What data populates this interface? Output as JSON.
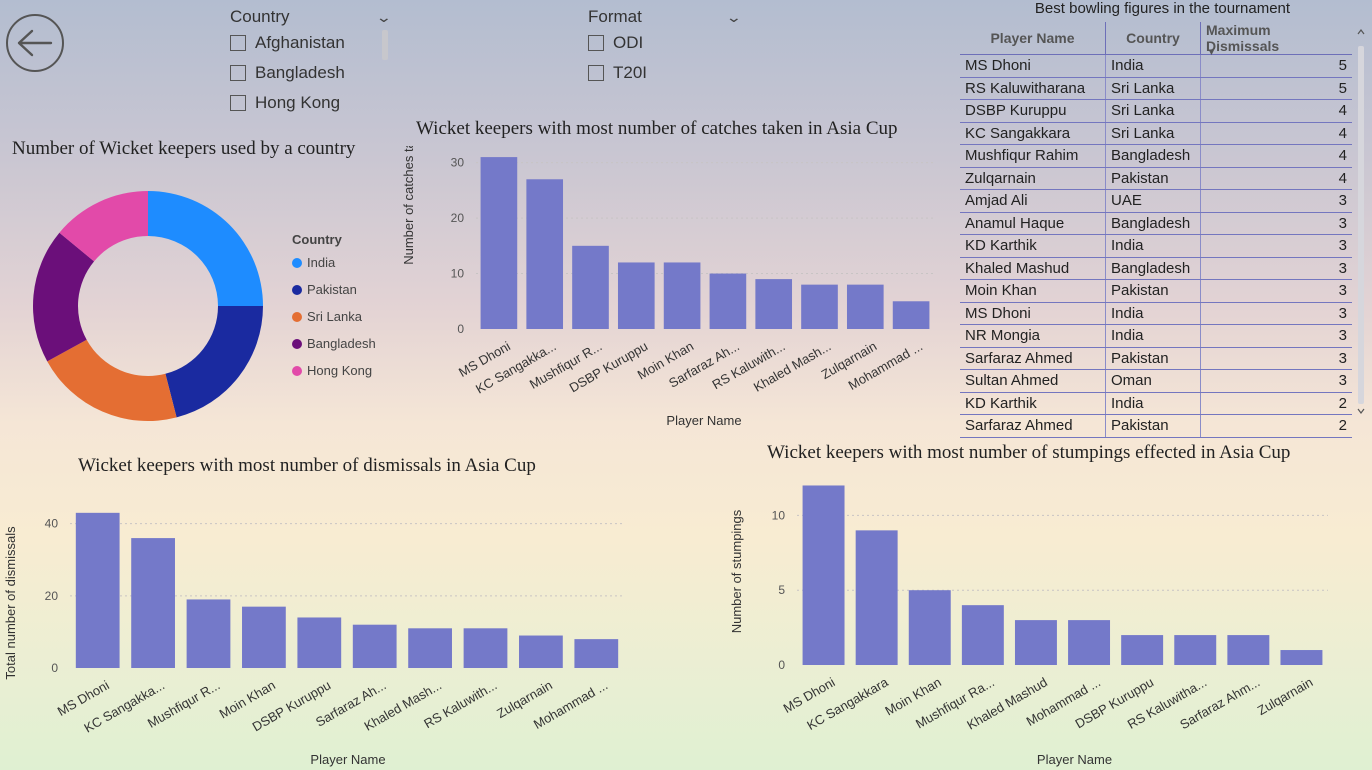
{
  "colors": {
    "bar": "#7479c9",
    "india": "#1e8cff",
    "pakistan": "#1a2aa0",
    "sri_lanka": "#e46e33",
    "bangladesh": "#6b0f7a",
    "hong_kong": "#e24aa9"
  },
  "back_icon": "back-arrow-icon",
  "country_slicer": {
    "title": "Country",
    "options": [
      "Afghanistan",
      "Bangladesh",
      "Hong Kong"
    ]
  },
  "format_slicer": {
    "title": "Format",
    "options": [
      "ODI",
      "T20I"
    ]
  },
  "table": {
    "title": "Best bowling figures in the tournament",
    "columns": [
      "Player Name",
      "Country",
      "Maximum Dismissals"
    ],
    "rows": [
      [
        "MS Dhoni",
        "India",
        "5"
      ],
      [
        "RS Kaluwitharana",
        "Sri Lanka",
        "5"
      ],
      [
        "DSBP Kuruppu",
        "Sri Lanka",
        "4"
      ],
      [
        "KC Sangakkara",
        "Sri Lanka",
        "4"
      ],
      [
        "Mushfiqur Rahim",
        "Bangladesh",
        "4"
      ],
      [
        "Zulqarnain",
        "Pakistan",
        "4"
      ],
      [
        "Amjad Ali",
        "UAE",
        "3"
      ],
      [
        "Anamul Haque",
        "Bangladesh",
        "3"
      ],
      [
        "KD Karthik",
        "India",
        "3"
      ],
      [
        "Khaled Mashud",
        "Bangladesh",
        "3"
      ],
      [
        "Moin Khan",
        "Pakistan",
        "3"
      ],
      [
        "MS Dhoni",
        "India",
        "3"
      ],
      [
        "NR Mongia",
        "India",
        "3"
      ],
      [
        "Sarfaraz Ahmed",
        "Pakistan",
        "3"
      ],
      [
        "Sultan Ahmed",
        "Oman",
        "3"
      ],
      [
        "KD Karthik",
        "India",
        "2"
      ],
      [
        "Sarfaraz Ahmed",
        "Pakistan",
        "2"
      ]
    ]
  },
  "chart_data": [
    {
      "id": "donut",
      "type": "pie",
      "title": "Number of Wicket keepers used by a country",
      "legend_title": "Country",
      "legend_position": "right",
      "labels": [
        "India",
        "Pakistan",
        "Sri Lanka",
        "Bangladesh",
        "Hong Kong"
      ],
      "values": [
        25,
        21,
        21,
        19,
        14
      ]
    },
    {
      "id": "catches",
      "type": "bar",
      "title": "Wicket keepers with most number of catches taken in Asia Cup",
      "xlabel": "Player Name",
      "ylabel": "Number of catches taken",
      "ylim": [
        0,
        33
      ],
      "yticks": [
        0,
        10,
        20,
        30
      ],
      "categories": [
        "MS Dhoni",
        "KC Sangakka...",
        "Mushfiqur R...",
        "DSBP Kuruppu",
        "Moin Khan",
        "Sarfaraz Ah...",
        "RS Kaluwith...",
        "Khaled Mash...",
        "Zulqarnain",
        "Mohammad ..."
      ],
      "values": [
        31,
        27,
        15,
        12,
        12,
        10,
        9,
        8,
        8,
        5
      ]
    },
    {
      "id": "dismissals",
      "type": "bar",
      "title": "Wicket keepers with most number of dismissals in Asia Cup",
      "xlabel": "Player Name",
      "ylabel": "Total number of dismissals",
      "ylim": [
        0,
        46
      ],
      "yticks": [
        0,
        20,
        40
      ],
      "categories": [
        "MS Dhoni",
        "KC Sangakka...",
        "Mushfiqur R...",
        "Moin Khan",
        "DSBP Kuruppu",
        "Sarfaraz Ah...",
        "Khaled Mash...",
        "RS Kaluwith...",
        "Zulqarnain",
        "Mohammad ..."
      ],
      "values": [
        43,
        36,
        19,
        17,
        14,
        12,
        11,
        11,
        9,
        8
      ]
    },
    {
      "id": "stumpings",
      "type": "bar",
      "title": "Wicket keepers with most number of stumpings effected in Asia Cup",
      "xlabel": "Player Name",
      "ylabel": "Number of stumpings",
      "ylim": [
        0,
        12.5
      ],
      "yticks": [
        0,
        5,
        10
      ],
      "categories": [
        "MS Dhoni",
        "KC Sangakkara",
        "Moin Khan",
        "Mushfiqur Ra...",
        "Khaled Mashud",
        "Mohammad ...",
        "DSBP Kuruppu",
        "RS Kaluwitha...",
        "Sarfaraz Ahm...",
        "Zulqarnain"
      ],
      "values": [
        12,
        9,
        5,
        4,
        3,
        3,
        2,
        2,
        2,
        1
      ]
    }
  ]
}
